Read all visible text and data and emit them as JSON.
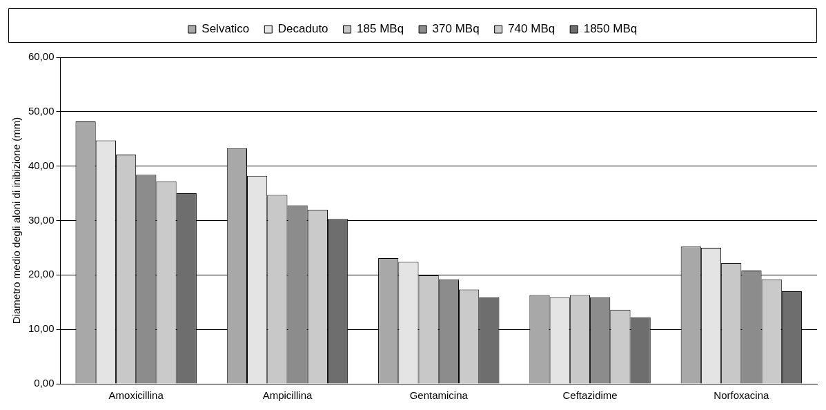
{
  "chart_data": {
    "type": "bar",
    "ylabel": "Diametro medio degli aloni di inibizione (mm)",
    "categories": [
      "Amoxicillina",
      "Ampicillina",
      "Gentamicina",
      "Ceftazidime",
      "Norfoxacina"
    ],
    "series": [
      {
        "name": "Selvatico",
        "color": "#a8a8a8",
        "values": [
          48.2,
          43.3,
          23.1,
          16.3,
          25.2
        ]
      },
      {
        "name": "Decaduto",
        "color": "#e4e4e4",
        "values": [
          44.7,
          38.2,
          22.4,
          15.9,
          25.0
        ]
      },
      {
        "name": "185 MBq",
        "color": "#c8c8c8",
        "values": [
          42.1,
          34.7,
          19.9,
          16.3,
          22.2
        ]
      },
      {
        "name": "370 MBq",
        "color": "#8c8c8c",
        "values": [
          38.4,
          32.8,
          19.2,
          15.9,
          20.8
        ]
      },
      {
        "name": "740 MBq",
        "color": "#cacaca",
        "values": [
          37.2,
          32.0,
          17.3,
          13.6,
          19.2
        ]
      },
      {
        "name": "1850 MBq",
        "color": "#6e6e6e",
        "values": [
          35.0,
          30.3,
          15.9,
          12.2,
          17.0
        ]
      }
    ],
    "ylim": [
      0,
      60
    ],
    "yticks": [
      {
        "value": 0,
        "label": "0,00"
      },
      {
        "value": 10,
        "label": "10,00"
      },
      {
        "value": 20,
        "label": "20,00"
      },
      {
        "value": 30,
        "label": "30,00"
      },
      {
        "value": 40,
        "label": "40,00"
      },
      {
        "value": 50,
        "label": "50,00"
      },
      {
        "value": 60,
        "label": "60,00"
      }
    ],
    "grid": "y",
    "legend": "top"
  }
}
